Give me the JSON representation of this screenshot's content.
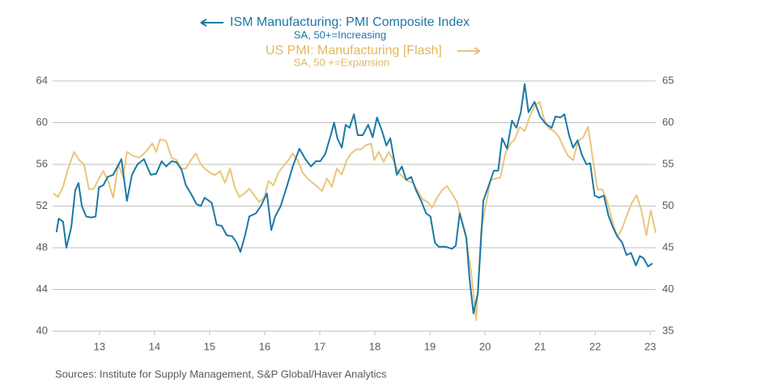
{
  "chart_data": {
    "type": "line",
    "series": [
      {
        "name": "ISM Manufacturing: PMI Composite Index",
        "subtitle": "SA, 50+=Increasing",
        "color": "#1b78a6",
        "x": [
          12.22,
          12.26,
          12.34,
          12.4,
          12.49,
          12.56,
          12.62,
          12.68,
          12.76,
          12.85,
          12.93,
          12.99,
          13.07,
          13.15,
          13.25,
          13.4,
          13.5,
          13.59,
          13.69,
          13.81,
          13.93,
          14.03,
          14.13,
          14.21,
          14.31,
          14.4,
          14.49,
          14.57,
          14.66,
          14.76,
          14.84,
          14.91,
          15.04,
          15.13,
          15.22,
          15.31,
          15.41,
          15.49,
          15.56,
          15.65,
          15.72,
          15.84,
          15.93,
          16.04,
          16.12,
          16.19,
          16.29,
          16.41,
          16.51,
          16.63,
          16.74,
          16.84,
          16.93,
          17.01,
          17.1,
          17.21,
          17.26,
          17.32,
          17.4,
          17.47,
          17.54,
          17.62,
          17.69,
          17.78,
          17.88,
          17.96,
          18.04,
          18.13,
          18.21,
          18.28,
          18.4,
          18.49,
          18.57,
          18.66,
          18.75,
          18.84,
          18.93,
          19.01,
          19.09,
          19.16,
          19.28,
          19.4,
          19.47,
          19.54,
          19.66,
          19.72,
          19.79,
          19.87,
          19.97,
          20.07,
          20.16,
          20.24,
          20.31,
          20.4,
          20.49,
          20.57,
          20.65,
          20.72,
          20.79,
          20.9,
          21.0,
          21.1,
          21.21,
          21.28,
          21.37,
          21.44,
          21.53,
          21.6,
          21.68,
          21.76,
          21.84,
          21.91,
          21.99,
          22.07,
          22.16,
          22.24,
          22.32,
          22.4,
          22.49,
          22.57,
          22.65,
          22.74,
          22.81,
          22.88,
          22.96,
          23.04
        ],
        "values": [
          49.5,
          50.8,
          50.5,
          48,
          50,
          53.5,
          54.2,
          52,
          51,
          50.9,
          51,
          53.8,
          54,
          54.8,
          55,
          56.5,
          52.5,
          55,
          56,
          56.5,
          55,
          55.1,
          56.3,
          55.8,
          56.3,
          56.2,
          55.5,
          54,
          53.2,
          52.2,
          52,
          52.8,
          52.3,
          50.2,
          50.1,
          49.2,
          49.1,
          48.5,
          47.6,
          49.3,
          51,
          51.3,
          52,
          53.2,
          49.7,
          51,
          52,
          54,
          55.8,
          57.5,
          56.5,
          55.8,
          56.3,
          56.3,
          57,
          59,
          60,
          58.5,
          57.6,
          59.8,
          59.5,
          60.8,
          58.8,
          58.8,
          59.8,
          58.6,
          60.5,
          59.2,
          57.8,
          58.5,
          55,
          55.8,
          54.5,
          54.8,
          53.5,
          52.5,
          51.3,
          51,
          48.5,
          48.1,
          48.1,
          47.9,
          48.2,
          51.3,
          49,
          45,
          41.7,
          43.6,
          52.5,
          54,
          55.4,
          55.4,
          58.5,
          57.5,
          60.2,
          59.5,
          61,
          63.7,
          61,
          62,
          60.6,
          59.9,
          59.5,
          60.6,
          60.5,
          60.8,
          58.7,
          57.6,
          58.3,
          56.9,
          56,
          56.1,
          53,
          52.8,
          53,
          51.1,
          50,
          49.1,
          48.5,
          47.3,
          47.5,
          46.3,
          47.2,
          47,
          46.2,
          46.5
        ]
      },
      {
        "name": "US PMI: Manufacturing [Flash]",
        "subtitle": "SA, 50 +=Expansion",
        "color": "#e8c67c",
        "axis": "y2",
        "x": [
          12.16,
          12.25,
          12.34,
          12.43,
          12.54,
          12.63,
          12.72,
          12.81,
          12.9,
          12.99,
          13.07,
          13.16,
          13.25,
          13.34,
          13.43,
          13.5,
          13.62,
          13.72,
          13.84,
          13.96,
          14.03,
          14.1,
          14.21,
          14.31,
          14.4,
          14.49,
          14.57,
          14.66,
          14.75,
          14.84,
          14.93,
          15.01,
          15.1,
          15.19,
          15.28,
          15.37,
          15.46,
          15.54,
          15.63,
          15.72,
          15.81,
          15.9,
          15.99,
          16.07,
          16.16,
          16.25,
          16.34,
          16.43,
          16.51,
          16.6,
          16.69,
          16.78,
          16.87,
          16.96,
          17.04,
          17.13,
          17.22,
          17.31,
          17.4,
          17.49,
          17.57,
          17.66,
          17.75,
          17.84,
          17.93,
          17.99,
          18.07,
          18.16,
          18.25,
          18.34,
          18.43,
          18.51,
          18.6,
          18.69,
          18.78,
          18.87,
          18.96,
          19.04,
          19.13,
          19.22,
          19.31,
          19.4,
          19.49,
          19.57,
          19.66,
          19.75,
          19.84,
          19.93,
          20.01,
          20.1,
          20.19,
          20.28,
          20.37,
          20.46,
          20.54,
          20.63,
          20.72,
          20.81,
          20.9,
          20.99,
          21.07,
          21.16,
          21.25,
          21.34,
          21.43,
          21.51,
          21.6,
          21.69,
          21.78,
          21.87,
          21.96,
          22.04,
          22.13,
          22.22,
          22.31,
          22.4,
          22.49,
          22.57,
          22.66,
          22.75,
          22.84,
          22.93,
          23.01,
          23.1
        ],
        "values": [
          51.5,
          51.1,
          52.3,
          54.5,
          56.5,
          55.5,
          55,
          52,
          52.1,
          53.3,
          54.2,
          53,
          51,
          55,
          53.5,
          56.5,
          56,
          55.8,
          56.5,
          57.5,
          56.5,
          58,
          57.8,
          55.8,
          55.5,
          54.5,
          54.5,
          55.5,
          56.3,
          55,
          54.4,
          54,
          53.7,
          54.2,
          52.8,
          54.5,
          52.2,
          51.1,
          51.5,
          52.1,
          51.3,
          50.5,
          51,
          53,
          52.5,
          54,
          54.8,
          55.5,
          56.3,
          55.5,
          54,
          53.3,
          52.8,
          52.3,
          51.8,
          53.3,
          52.3,
          54.5,
          53.8,
          55.5,
          56.3,
          56.8,
          56.8,
          57.3,
          57.5,
          55.5,
          56.5,
          55.3,
          56.5,
          55.5,
          54,
          53.5,
          53,
          52.8,
          51.8,
          50.8,
          50.5,
          49.8,
          51,
          51.9,
          52.4,
          51.5,
          50.5,
          48.5,
          46,
          42,
          36.3,
          47,
          50,
          53.1,
          53.3,
          53.4,
          56.3,
          57.5,
          58,
          59.5,
          59,
          60.7,
          62,
          62.5,
          60.5,
          59.3,
          59,
          58.3,
          57,
          56,
          55.5,
          57.8,
          58.2,
          59.5,
          55.6,
          52,
          52,
          50.5,
          48.2,
          46.3,
          47.3,
          48.8,
          50.3,
          51.3,
          49.5,
          46.5,
          49.5,
          46.8
        ]
      }
    ],
    "xlim": [
      12.15,
      23.1
    ],
    "xticks": [
      13,
      14,
      15,
      16,
      17,
      18,
      19,
      20,
      21,
      22,
      23
    ],
    "ylim": [
      40,
      64
    ],
    "yticks": [
      40,
      44,
      48,
      52,
      56,
      60,
      64
    ],
    "y2lim": [
      35,
      65
    ],
    "y2ticks": [
      35,
      40,
      45,
      50,
      55,
      60,
      65
    ],
    "grid": true,
    "source": "Sources:  Institute for Supply Management, S&P Global/Haver Analytics"
  }
}
